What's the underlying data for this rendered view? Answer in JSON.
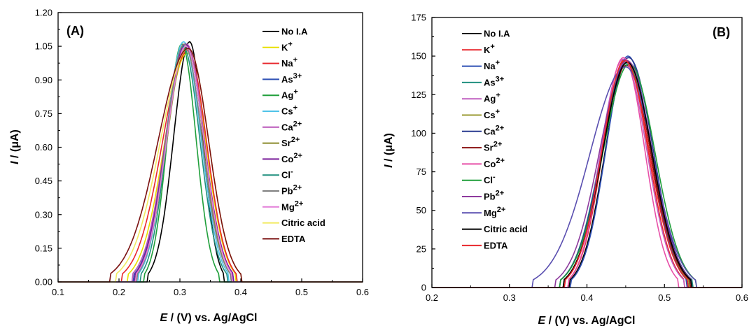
{
  "legend_labels": [
    {
      "base": "No I.A",
      "sup": ""
    },
    {
      "base": "K",
      "sup": "+"
    },
    {
      "base": "Na",
      "sup": "+"
    },
    {
      "base": "As",
      "sup": "3+"
    },
    {
      "base": "Ag",
      "sup": "+"
    },
    {
      "base": "Cs",
      "sup": "+"
    },
    {
      "base": "Ca",
      "sup": "2+"
    },
    {
      "base": "Sr",
      "sup": "2+"
    },
    {
      "base": "Co",
      "sup": "2+"
    },
    {
      "base": "Cl",
      "sup": "-"
    },
    {
      "base": "Pb",
      "sup": "2+"
    },
    {
      "base": "Mg",
      "sup": "2+"
    },
    {
      "base": "Citric acid",
      "sup": ""
    },
    {
      "base": "EDTA",
      "sup": ""
    }
  ],
  "chart_data": [
    {
      "type": "line",
      "panel": "(A)",
      "xlabel": {
        "italic": "E",
        "rest": " / (V) vs. Ag/AgCl"
      },
      "ylabel": {
        "italic": "I",
        "rest": "  / (μA)"
      },
      "xlim": [
        0.1,
        0.6
      ],
      "ylim": [
        0,
        1.2
      ],
      "xticks": [
        "0.1",
        "0.2",
        "0.3",
        "0.4",
        "0.5",
        "0.6"
      ],
      "yticks": [
        "0.00",
        "0.15",
        "0.30",
        "0.45",
        "0.60",
        "0.75",
        "0.90",
        "1.05",
        "1.20"
      ],
      "legend_position": "top-right",
      "colors": [
        "#000000",
        "#e8e000",
        "#e8262c",
        "#2d4fb4",
        "#1f9f3a",
        "#4fc3e8",
        "#b955b9",
        "#8a8a2a",
        "#7a1f9a",
        "#1f8f7f",
        "#808080",
        "#e37fd8",
        "#f2ea60",
        "#7a1010"
      ],
      "series": [
        {
          "name": "No I.A",
          "peak_x": 0.316,
          "peak_y": 1.07,
          "onset_x": 0.248,
          "end_x": 0.372
        },
        {
          "name": "K+",
          "peak_x": 0.312,
          "peak_y": 1.02,
          "onset_x": 0.215,
          "end_x": 0.392
        },
        {
          "name": "Na+",
          "peak_x": 0.313,
          "peak_y": 1.03,
          "onset_x": 0.205,
          "end_x": 0.393
        },
        {
          "name": "As3+",
          "peak_x": 0.309,
          "peak_y": 1.06,
          "onset_x": 0.225,
          "end_x": 0.387
        },
        {
          "name": "Ag+",
          "peak_x": 0.303,
          "peak_y": 1.06,
          "onset_x": 0.242,
          "end_x": 0.364
        },
        {
          "name": "Cs+",
          "peak_x": 0.306,
          "peak_y": 1.07,
          "onset_x": 0.232,
          "end_x": 0.38
        },
        {
          "name": "Ca2+",
          "peak_x": 0.311,
          "peak_y": 1.06,
          "onset_x": 0.222,
          "end_x": 0.386
        },
        {
          "name": "Sr2+",
          "peak_x": 0.311,
          "peak_y": 1.05,
          "onset_x": 0.228,
          "end_x": 0.383
        },
        {
          "name": "Co2+",
          "peak_x": 0.309,
          "peak_y": 1.06,
          "onset_x": 0.226,
          "end_x": 0.388
        },
        {
          "name": "Cl-",
          "peak_x": 0.305,
          "peak_y": 1.05,
          "onset_x": 0.236,
          "end_x": 0.377
        },
        {
          "name": "Pb2+",
          "peak_x": 0.307,
          "peak_y": 1.06,
          "onset_x": 0.23,
          "end_x": 0.383
        },
        {
          "name": "Mg2+",
          "peak_x": 0.31,
          "peak_y": 1.05,
          "onset_x": 0.228,
          "end_x": 0.386
        },
        {
          "name": "Citric acid",
          "peak_x": 0.314,
          "peak_y": 1.04,
          "onset_x": 0.195,
          "end_x": 0.4
        },
        {
          "name": "EDTA",
          "peak_x": 0.314,
          "peak_y": 1.04,
          "onset_x": 0.185,
          "end_x": 0.4
        }
      ]
    },
    {
      "type": "line",
      "panel": "(B)",
      "xlabel": {
        "italic": "E",
        "rest": " / (V) vs. Ag/AgCl"
      },
      "ylabel": {
        "italic": "I",
        "rest": "  / (μA)"
      },
      "xlim": [
        0.2,
        0.6
      ],
      "ylim": [
        0,
        175
      ],
      "xticks": [
        "0.2",
        "0.3",
        "0.4",
        "0.5",
        "0.6"
      ],
      "yticks": [
        "0",
        "25",
        "50",
        "75",
        "100",
        "125",
        "150",
        "175"
      ],
      "legend_position": "top-left",
      "colors": [
        "#000000",
        "#e8262c",
        "#2d4fb4",
        "#1f8f7f",
        "#c060c0",
        "#9a9a30",
        "#283a8f",
        "#8a1010",
        "#e84fa8",
        "#1f9f3a",
        "#8e3a9e",
        "#5a4fb0",
        "#000000",
        "#e8262c"
      ],
      "series": [
        {
          "name": "No I.A",
          "peak_x": 0.452,
          "peak_y": 146,
          "onset_x": 0.378,
          "end_x": 0.53
        },
        {
          "name": "K+",
          "peak_x": 0.449,
          "peak_y": 148,
          "onset_x": 0.376,
          "end_x": 0.526
        },
        {
          "name": "Na+",
          "peak_x": 0.453,
          "peak_y": 150,
          "onset_x": 0.38,
          "end_x": 0.529
        },
        {
          "name": "As3+",
          "peak_x": 0.451,
          "peak_y": 145,
          "onset_x": 0.366,
          "end_x": 0.536
        },
        {
          "name": "Ag+",
          "peak_x": 0.447,
          "peak_y": 148,
          "onset_x": 0.372,
          "end_x": 0.525
        },
        {
          "name": "Cs+",
          "peak_x": 0.452,
          "peak_y": 146,
          "onset_x": 0.37,
          "end_x": 0.532
        },
        {
          "name": "Ca2+",
          "peak_x": 0.454,
          "peak_y": 149,
          "onset_x": 0.366,
          "end_x": 0.535
        },
        {
          "name": "Sr2+",
          "peak_x": 0.451,
          "peak_y": 144,
          "onset_x": 0.37,
          "end_x": 0.533
        },
        {
          "name": "Co2+",
          "peak_x": 0.447,
          "peak_y": 149,
          "onset_x": 0.376,
          "end_x": 0.518
        },
        {
          "name": "Cl-",
          "peak_x": 0.455,
          "peak_y": 145,
          "onset_x": 0.366,
          "end_x": 0.54
        },
        {
          "name": "Pb2+",
          "peak_x": 0.452,
          "peak_y": 147,
          "onset_x": 0.36,
          "end_x": 0.535
        },
        {
          "name": "Mg2+",
          "peak_x": 0.45,
          "peak_y": 143,
          "onset_x": 0.33,
          "end_x": 0.54
        },
        {
          "name": "Citric acid",
          "peak_x": 0.452,
          "peak_y": 146,
          "onset_x": 0.37,
          "end_x": 0.534
        },
        {
          "name": "EDTA",
          "peak_x": 0.449,
          "peak_y": 147,
          "onset_x": 0.372,
          "end_x": 0.53
        }
      ]
    }
  ]
}
